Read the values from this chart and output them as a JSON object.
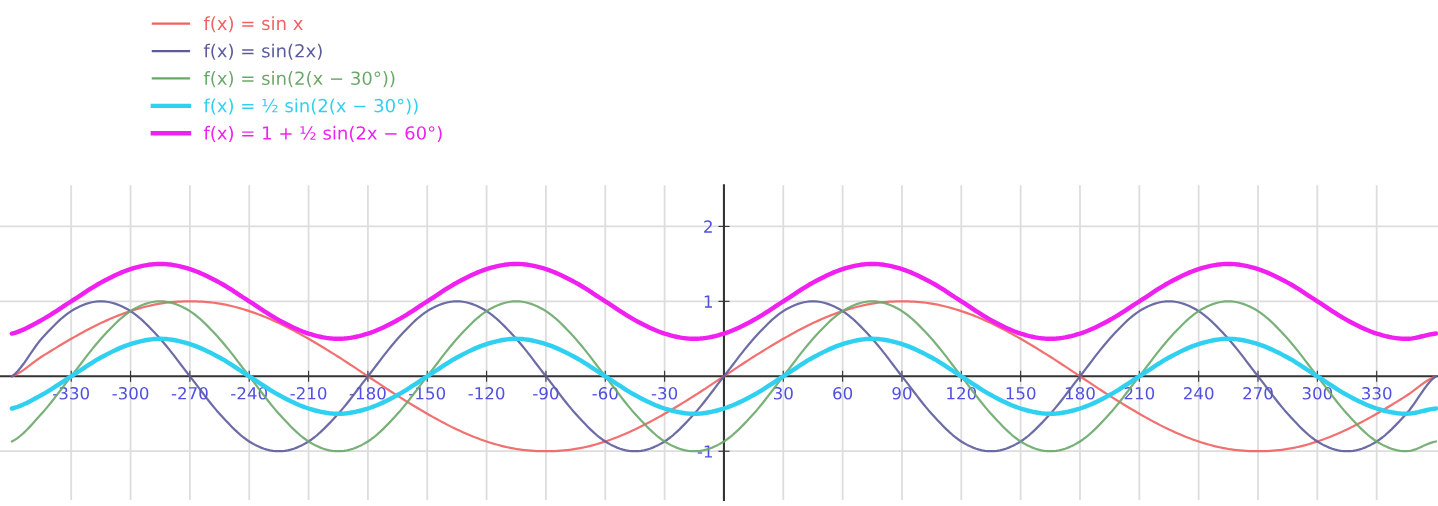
{
  "chart_data": {
    "type": "line",
    "x": [
      -360,
      -345,
      -330,
      -315,
      -300,
      -285,
      -270,
      -255,
      -240,
      -225,
      -210,
      -195,
      -180,
      -165,
      -150,
      -135,
      -120,
      -105,
      -90,
      -75,
      -60,
      -45,
      -30,
      -15,
      0,
      15,
      30,
      45,
      60,
      75,
      90,
      105,
      120,
      135,
      150,
      165,
      180,
      195,
      210,
      225,
      240,
      255,
      270,
      285,
      300,
      315,
      330,
      345,
      360
    ],
    "series": [
      {
        "name": "f(x) = sin x",
        "color": "#f06262",
        "values": [
          0,
          0.26,
          0.5,
          0.71,
          0.87,
          0.97,
          1,
          0.97,
          0.87,
          0.71,
          0.5,
          0.26,
          0,
          -0.26,
          -0.5,
          -0.71,
          -0.87,
          -0.97,
          -1,
          -0.97,
          -0.87,
          -0.71,
          -0.5,
          -0.26,
          0,
          0.26,
          0.5,
          0.71,
          0.87,
          0.97,
          1,
          0.97,
          0.87,
          0.71,
          0.5,
          0.26,
          0,
          -0.26,
          -0.5,
          -0.71,
          -0.87,
          -0.97,
          -1,
          -0.97,
          -0.87,
          -0.71,
          -0.5,
          -0.26,
          0
        ]
      },
      {
        "name": "f(x) = sin(2x)",
        "color": "#5c5c9c",
        "values": [
          0,
          0.5,
          0.87,
          1,
          0.87,
          0.5,
          0,
          -0.5,
          -0.87,
          -1,
          -0.87,
          -0.5,
          0,
          0.5,
          0.87,
          1,
          0.87,
          0.5,
          0,
          -0.5,
          -0.87,
          -1,
          -0.87,
          -0.5,
          0,
          0.5,
          0.87,
          1,
          0.87,
          0.5,
          0,
          -0.5,
          -0.87,
          -1,
          -0.87,
          -0.5,
          0,
          0.5,
          0.87,
          1,
          0.87,
          0.5,
          0,
          -0.5,
          -0.87,
          -1,
          -0.87,
          -0.5,
          0
        ]
      },
      {
        "name": "f(x) = sin(2(x − 30°))",
        "color": "#6aa86a",
        "values": [
          -0.87,
          -0.5,
          0,
          0.5,
          0.87,
          1,
          0.87,
          0.5,
          0,
          -0.5,
          -0.87,
          -1,
          -0.87,
          -0.5,
          0,
          0.5,
          0.87,
          1,
          0.87,
          0.5,
          0,
          -0.5,
          -0.87,
          -1,
          -0.87,
          -0.5,
          0,
          0.5,
          0.87,
          1,
          0.87,
          0.5,
          0,
          -0.5,
          -0.87,
          -1,
          -0.87,
          -0.5,
          0,
          0.5,
          0.87,
          1,
          0.87,
          0.5,
          0,
          -0.5,
          -0.87,
          -1,
          -0.87
        ]
      },
      {
        "name": "f(x) = ½ sin(2(x − 30°))",
        "color": "#30d0f0",
        "values": [
          -0.43,
          -0.25,
          0,
          0.25,
          0.43,
          0.5,
          0.43,
          0.25,
          0,
          -0.25,
          -0.43,
          -0.5,
          -0.43,
          -0.25,
          0,
          0.25,
          0.43,
          0.5,
          0.43,
          0.25,
          0,
          -0.25,
          -0.43,
          -0.5,
          -0.43,
          -0.25,
          0,
          0.25,
          0.43,
          0.5,
          0.43,
          0.25,
          0,
          -0.25,
          -0.43,
          -0.5,
          -0.43,
          -0.25,
          0,
          0.25,
          0.43,
          0.5,
          0.43,
          0.25,
          0,
          -0.25,
          -0.43,
          -0.5,
          -0.43
        ]
      },
      {
        "name": "f(x) = 1 + ½ sin(2x − 60°)",
        "color": "#f020f0",
        "values": [
          0.57,
          0.75,
          1,
          1.25,
          1.43,
          1.5,
          1.43,
          1.25,
          1,
          0.75,
          0.57,
          0.5,
          0.57,
          0.75,
          1,
          1.25,
          1.43,
          1.5,
          1.43,
          1.25,
          1,
          0.75,
          0.57,
          0.5,
          0.57,
          0.75,
          1,
          1.25,
          1.43,
          1.5,
          1.43,
          1.25,
          1,
          0.75,
          0.57,
          0.5,
          0.57,
          0.75,
          1,
          1.25,
          1.43,
          1.5,
          1.43,
          1.25,
          1,
          0.75,
          0.57,
          0.5,
          0.57
        ]
      }
    ],
    "xlim": [
      -366,
      361
    ],
    "ylim": [
      -1.65,
      2.55
    ],
    "xticks": [
      -330,
      -300,
      -270,
      -240,
      -210,
      -180,
      -150,
      -120,
      -90,
      -60,
      -30,
      30,
      60,
      90,
      120,
      150,
      180,
      210,
      240,
      270,
      300,
      330
    ],
    "yticks": [
      -1,
      1,
      2
    ],
    "grid": true,
    "legend": "top left",
    "marker": "none",
    "line_style": "solid"
  }
}
